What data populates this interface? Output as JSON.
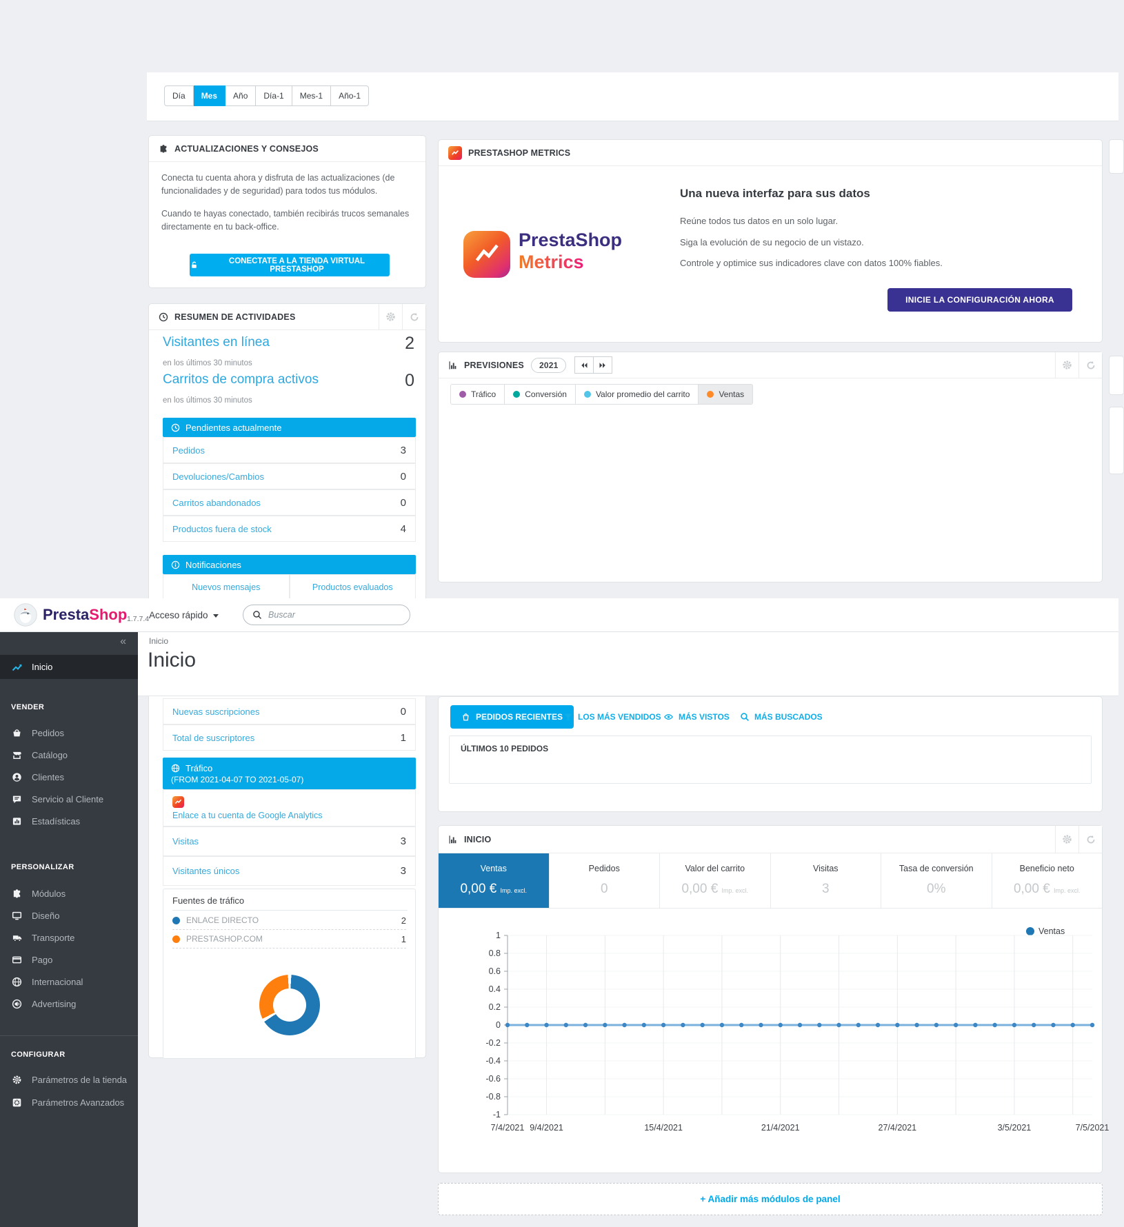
{
  "colors": {
    "accent_blue": "#00a9ec",
    "link_blue": "#35a9dc",
    "tile_active_blue": "#1b78b3",
    "sidebar_bg": "#363a41",
    "indigo_button": "#3a3292",
    "brand_presta": "#2a2265",
    "brand_shop": "#e31a6e",
    "section_header_blue": "#06a9e8"
  },
  "header": {
    "brand_presta": "Presta",
    "brand_shop": "Shop",
    "version": "1.7.7.4",
    "quick_access": "Acceso rápido",
    "search_placeholder": "Buscar"
  },
  "page": {
    "breadcrumb": "Inicio",
    "title": "Inicio"
  },
  "sidebar": {
    "collapse": "«",
    "home": "Inicio",
    "sections": [
      {
        "label": "VENDER",
        "items": [
          "Pedidos",
          "Catálogo",
          "Clientes",
          "Servicio al Cliente",
          "Estadísticas"
        ]
      },
      {
        "label": "PERSONALIZAR",
        "items": [
          "Módulos",
          "Diseño",
          "Transporte",
          "Pago",
          "Internacional",
          "Advertising"
        ]
      },
      {
        "label": "CONFIGURAR",
        "items": [
          "Parámetros de la tienda",
          "Parámetros Avanzados"
        ]
      }
    ]
  },
  "range_tabs": [
    "Día",
    "Mes",
    "Año",
    "Día-1",
    "Mes-1",
    "Año-1"
  ],
  "updates_panel": {
    "title": "ACTUALIZACIONES Y CONSEJOS",
    "p1": "Conecta tu cuenta ahora y disfruta de las actualizaciones (de funcionalidades y de seguridad) para todos tus módulos.",
    "p2": "Cuando te hayas conectado, también recibirás trucos semanales directamente en tu back-office.",
    "cta": "CONECTATE A LA TIENDA VIRTUAL PRESTASHOP"
  },
  "metrics_panel": {
    "title": "PRESTASHOP METRICS",
    "logo_top": "PrestaShop",
    "logo_bottom": "Metrics",
    "heading": "Una nueva interfaz para sus datos",
    "line1": "Reúne todos tus datos en un solo lugar.",
    "line2": "Siga la evolución de su negocio de un vistazo.",
    "line3": "Controle y optimice sus indicadores clave con datos 100% fiables.",
    "cta": "INICIE LA CONFIGURACIÓN AHORA"
  },
  "activity_panel": {
    "title": "RESUMEN DE ACTIVIDADES",
    "online": {
      "label": "Visitantes en línea",
      "sub": "en los últimos 30 minutos",
      "value": "2"
    },
    "carts": {
      "label": "Carritos de compra activos",
      "sub": "en los últimos 30 minutos",
      "value": "0"
    },
    "pending": {
      "title": "Pendientes actualmente",
      "rows": [
        {
          "label": "Pedidos",
          "value": "3"
        },
        {
          "label": "Devoluciones/Cambios",
          "value": "0"
        },
        {
          "label": "Carritos abandonados",
          "value": "0"
        },
        {
          "label": "Productos fuera de stock",
          "value": "4"
        }
      ]
    },
    "notifications": {
      "title": "Notificaciones",
      "tabs": [
        "Nuevos mensajes",
        "Productos evaluados"
      ]
    },
    "subscriptions": [
      {
        "label": "Nuevas suscripciones",
        "value": "0"
      },
      {
        "label": "Total de suscriptores",
        "value": "1"
      }
    ],
    "traffic": {
      "title": "Tráfico",
      "range": "(FROM 2021-04-07 TO 2021-05-07)",
      "ga_link": "Enlace a tu cuenta de Google Analytics",
      "rows": [
        {
          "label": "Visitas",
          "value": "3"
        },
        {
          "label": "Visitantes únicos",
          "value": "3"
        }
      ],
      "sources_title": "Fuentes de tráfico",
      "sources": [
        {
          "label": "ENLACE DIRECTO",
          "value": "2",
          "color": "#1f77b4"
        },
        {
          "label": "PRESTASHOP.COM",
          "value": "1",
          "color": "#ff7f0e"
        }
      ]
    }
  },
  "forecast_panel": {
    "title": "PREVISIONES",
    "year": "2021",
    "legend": [
      {
        "label": "Tráfico",
        "color": "#a05ba8"
      },
      {
        "label": "Conversión",
        "color": "#00a89d"
      },
      {
        "label": "Valor promedio del carrito",
        "color": "#53c5e8"
      },
      {
        "label": "Ventas",
        "color": "#ff8a2a"
      }
    ]
  },
  "orders_panel": {
    "tabs": [
      {
        "label": "PEDIDOS RECIENTES"
      },
      {
        "label": "LOS MÁS VENDIDOS"
      },
      {
        "label": "MÁS VISTOS"
      },
      {
        "label": "MÁS BUSCADOS"
      }
    ],
    "active_tab": "PEDIDOS RECIENTES",
    "box_title": "ÚLTIMOS 10 PEDIDOS"
  },
  "dashboard_panel": {
    "title": "INICIO",
    "legend": "Ventas",
    "tiles": [
      {
        "label": "Ventas",
        "value": "0,00 €",
        "suffix": "Imp. excl."
      },
      {
        "label": "Pedidos",
        "value": "0",
        "suffix": ""
      },
      {
        "label": "Valor del carrito",
        "value": "0,00 €",
        "suffix": "Imp. excl."
      },
      {
        "label": "Visitas",
        "value": "3",
        "suffix": ""
      },
      {
        "label": "Tasa de conversión",
        "value": "0%",
        "suffix": ""
      },
      {
        "label": "Beneficio neto",
        "value": "0,00 €",
        "suffix": "Imp. excl."
      }
    ]
  },
  "add_modules_label": "+ Añadir más módulos de panel",
  "chart_data": [
    {
      "type": "line",
      "title": "INICIO",
      "legend": "Ventas",
      "legend_color": "#1f77b4",
      "line_color": "#7ab2dd",
      "dot_color": "#3d87c5",
      "ylim": [
        -1,
        1
      ],
      "y_ticks": [
        "1",
        "0.8",
        "0.6",
        "0.4",
        "0.2",
        "0",
        "-0.2",
        "-0.4",
        "-0.6",
        "-0.8",
        "-1"
      ],
      "x_range_days": 30,
      "grid_days": [
        2,
        5,
        8,
        11,
        14,
        17,
        20,
        23,
        26,
        29
      ],
      "x_axis": [
        {
          "label": "7/4/2021",
          "day": 0
        },
        {
          "label": "9/4/2021",
          "day": 2
        },
        {
          "label": "15/4/2021",
          "day": 8
        },
        {
          "label": "21/4/2021",
          "day": 14
        },
        {
          "label": "27/4/2021",
          "day": 20
        },
        {
          "label": "3/5/2021",
          "day": 26
        },
        {
          "label": "7/5/2021",
          "day": 30
        }
      ],
      "series": [
        {
          "name": "Ventas",
          "values": [
            0,
            0,
            0,
            0,
            0,
            0,
            0,
            0,
            0,
            0,
            0,
            0,
            0,
            0,
            0,
            0,
            0,
            0,
            0,
            0,
            0,
            0,
            0,
            0,
            0,
            0,
            0,
            0,
            0,
            0,
            0
          ]
        }
      ]
    },
    {
      "type": "pie",
      "title": "Fuentes de tráfico",
      "labels": [
        "ENLACE DIRECTO",
        "PRESTASHOP.COM"
      ],
      "values": [
        2,
        1
      ],
      "colors": [
        "#1f77b4",
        "#ff7f0e"
      ],
      "hole": true
    }
  ]
}
